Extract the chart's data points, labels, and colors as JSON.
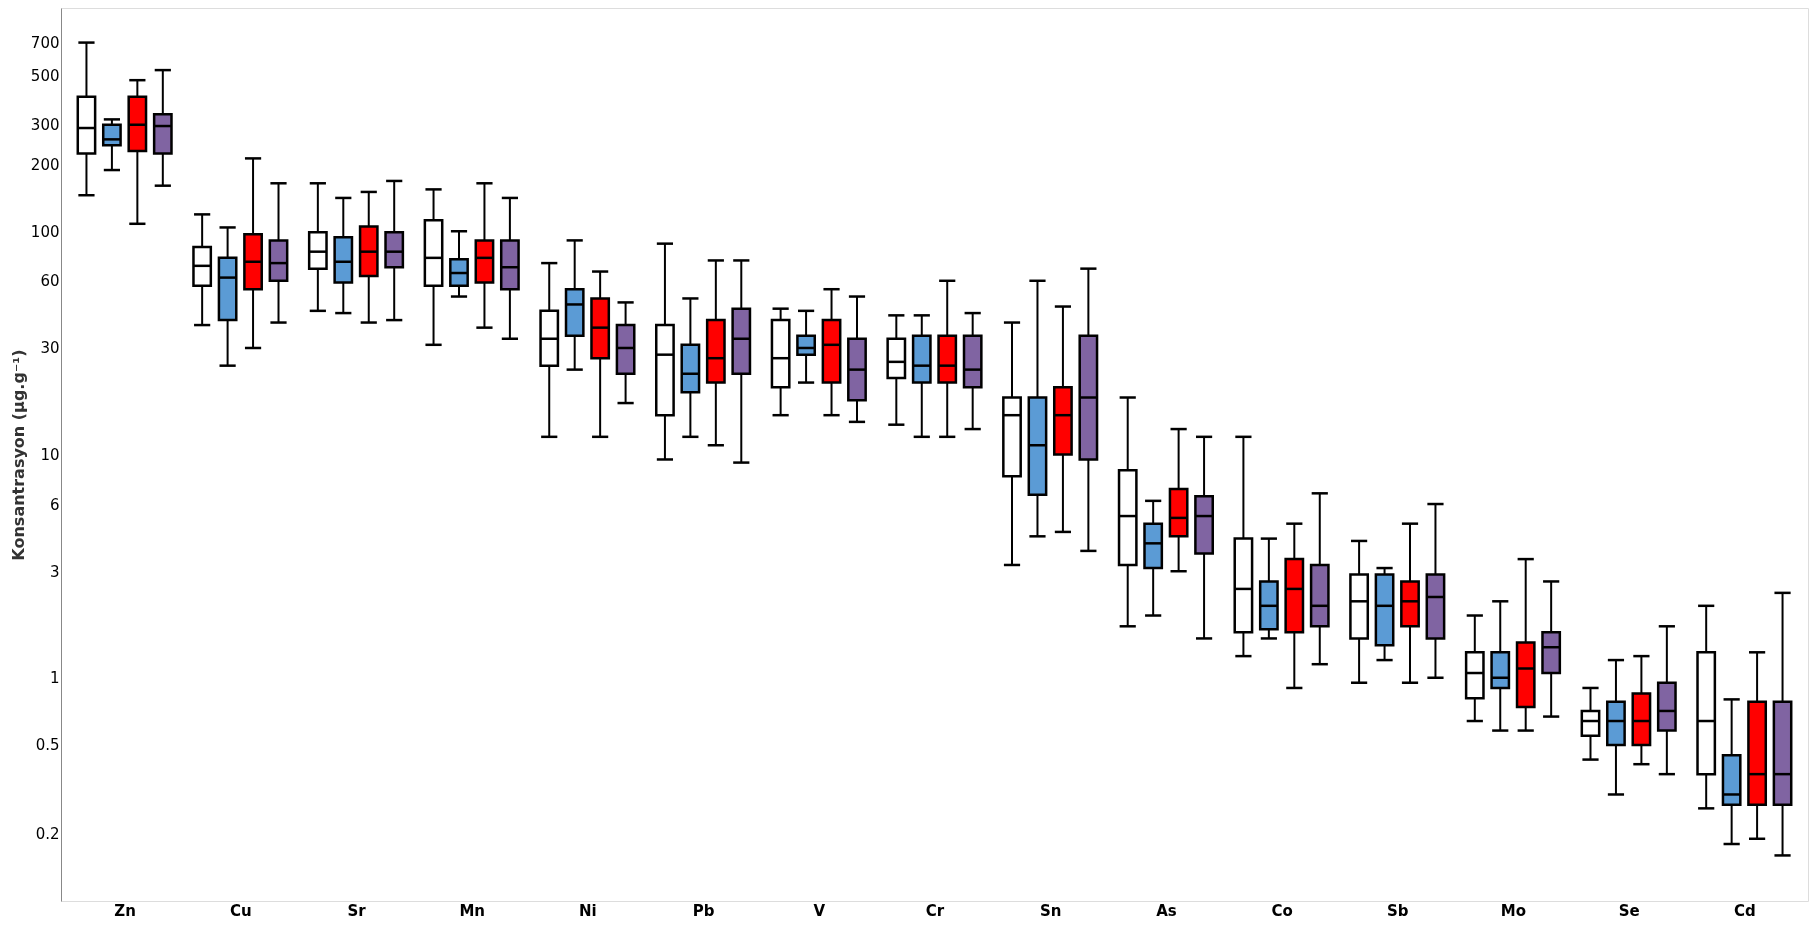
{
  "chart_data": {
    "type": "box",
    "ylabel": "Konsantrasyon  (µg.g⁻¹)",
    "categories": [
      "Zn",
      "Cu",
      "Sr",
      "Mn",
      "Ni",
      "Pb",
      "V",
      "Cr",
      "Sn",
      "As",
      "Co",
      "Sb",
      "Mo",
      "Se",
      "Cd"
    ],
    "log": true,
    "ylim": [
      0.1,
      1000
    ],
    "yticks": [
      0.2,
      0.5,
      1,
      3,
      6,
      10,
      30,
      60,
      100,
      200,
      300,
      500,
      700
    ],
    "grid": false,
    "legend": false,
    "series": [
      {
        "color": "#ffffff",
        "boxes": [
          {
            "low": 145,
            "q1": 223,
            "median": 290,
            "q3": 400,
            "high": 700
          },
          {
            "low": 38,
            "q1": 57,
            "median": 70,
            "q3": 85,
            "high": 119
          },
          {
            "low": 44,
            "q1": 68,
            "median": 81,
            "q3": 99,
            "high": 164
          },
          {
            "low": 31,
            "q1": 57,
            "median": 76,
            "q3": 112,
            "high": 154
          },
          {
            "low": 12,
            "q1": 25,
            "median": 33,
            "q3": 44,
            "high": 72
          },
          {
            "low": 9.5,
            "q1": 15,
            "median": 28,
            "q3": 38,
            "high": 88
          },
          {
            "low": 15,
            "q1": 20,
            "median": 27,
            "q3": 40,
            "high": 45
          },
          {
            "low": 13.6,
            "q1": 22,
            "median": 26,
            "q3": 33,
            "high": 42
          },
          {
            "low": 3.2,
            "q1": 8,
            "median": 15,
            "q3": 18,
            "high": 39
          },
          {
            "low": 1.7,
            "q1": 3.2,
            "median": 5.3,
            "q3": 8.5,
            "high": 18
          },
          {
            "low": 1.25,
            "q1": 1.6,
            "median": 2.5,
            "q3": 4.2,
            "high": 12
          },
          {
            "low": 0.95,
            "q1": 1.5,
            "median": 2.2,
            "q3": 2.9,
            "high": 4.1
          },
          {
            "low": 0.64,
            "q1": 0.81,
            "median": 1.05,
            "q3": 1.3,
            "high": 1.9
          },
          {
            "low": 0.43,
            "q1": 0.55,
            "median": 0.64,
            "q3": 0.71,
            "high": 0.9
          },
          {
            "low": 0.26,
            "q1": 0.37,
            "median": 0.64,
            "q3": 1.3,
            "high": 2.1
          }
        ]
      },
      {
        "color": "#5b9bd5",
        "boxes": [
          {
            "low": 188,
            "q1": 243,
            "median": 258,
            "q3": 300,
            "high": 317
          },
          {
            "low": 25,
            "q1": 40,
            "median": 62,
            "q3": 76,
            "high": 104
          },
          {
            "low": 43,
            "q1": 59,
            "median": 73,
            "q3": 94,
            "high": 141
          },
          {
            "low": 51,
            "q1": 57,
            "median": 65,
            "q3": 75,
            "high": 100
          },
          {
            "low": 24,
            "q1": 34,
            "median": 47,
            "q3": 55,
            "high": 91
          },
          {
            "low": 12,
            "q1": 19,
            "median": 23,
            "q3": 31,
            "high": 50
          },
          {
            "low": 21,
            "q1": 28,
            "median": 30,
            "q3": 34,
            "high": 44
          },
          {
            "low": 12,
            "q1": 21,
            "median": 25,
            "q3": 34,
            "high": 42
          },
          {
            "low": 4.3,
            "q1": 6.6,
            "median": 11,
            "q3": 18,
            "high": 60
          },
          {
            "low": 1.9,
            "q1": 3.1,
            "median": 4,
            "q3": 4.9,
            "high": 6.2
          },
          {
            "low": 1.5,
            "q1": 1.65,
            "median": 2.1,
            "q3": 2.7,
            "high": 4.2
          },
          {
            "low": 1.2,
            "q1": 1.4,
            "median": 2.1,
            "q3": 2.9,
            "high": 3.1
          },
          {
            "low": 0.58,
            "q1": 0.9,
            "median": 1,
            "q3": 1.3,
            "high": 2.2
          },
          {
            "low": 0.3,
            "q1": 0.5,
            "median": 0.64,
            "q3": 0.78,
            "high": 1.2
          },
          {
            "low": 0.18,
            "q1": 0.27,
            "median": 0.3,
            "q3": 0.45,
            "high": 0.8
          }
        ]
      },
      {
        "color": "#ff0000",
        "boxes": [
          {
            "low": 108,
            "q1": 229,
            "median": 300,
            "q3": 400,
            "high": 475
          },
          {
            "low": 30,
            "q1": 55,
            "median": 73,
            "q3": 97,
            "high": 212
          },
          {
            "low": 39,
            "q1": 63,
            "median": 81,
            "q3": 105,
            "high": 150
          },
          {
            "low": 37,
            "q1": 59,
            "median": 76,
            "q3": 91,
            "high": 164
          },
          {
            "low": 12,
            "q1": 27,
            "median": 37,
            "q3": 50,
            "high": 66
          },
          {
            "low": 11,
            "q1": 21,
            "median": 27,
            "q3": 40,
            "high": 74
          },
          {
            "low": 15,
            "q1": 21,
            "median": 31,
            "q3": 40,
            "high": 55
          },
          {
            "low": 12,
            "q1": 21,
            "median": 25,
            "q3": 34,
            "high": 60
          },
          {
            "low": 4.5,
            "q1": 10,
            "median": 15,
            "q3": 20,
            "high": 46
          },
          {
            "low": 3,
            "q1": 4.3,
            "median": 5.2,
            "q3": 7,
            "high": 13
          },
          {
            "low": 0.9,
            "q1": 1.6,
            "median": 2.5,
            "q3": 3.4,
            "high": 4.9
          },
          {
            "low": 0.95,
            "q1": 1.7,
            "median": 2.2,
            "q3": 2.7,
            "high": 4.9
          },
          {
            "low": 0.58,
            "q1": 0.74,
            "median": 1.1,
            "q3": 1.44,
            "high": 3.4
          },
          {
            "low": 0.41,
            "q1": 0.5,
            "median": 0.64,
            "q3": 0.85,
            "high": 1.25
          },
          {
            "low": 0.19,
            "q1": 0.27,
            "median": 0.37,
            "q3": 0.78,
            "high": 1.3
          }
        ]
      },
      {
        "color": "#8064a2",
        "boxes": [
          {
            "low": 160,
            "q1": 223,
            "median": 296,
            "q3": 334,
            "high": 527
          },
          {
            "low": 39,
            "q1": 60,
            "median": 72,
            "q3": 91,
            "high": 164
          },
          {
            "low": 40,
            "q1": 69,
            "median": 81,
            "q3": 99,
            "high": 168
          },
          {
            "low": 33,
            "q1": 55,
            "median": 69,
            "q3": 91,
            "high": 141
          },
          {
            "low": 17,
            "q1": 23,
            "median": 30,
            "q3": 38,
            "high": 48
          },
          {
            "low": 9.2,
            "q1": 23,
            "median": 33,
            "q3": 45,
            "high": 74
          },
          {
            "low": 14,
            "q1": 17.5,
            "median": 24,
            "q3": 33,
            "high": 51
          },
          {
            "low": 13,
            "q1": 20,
            "median": 24,
            "q3": 34,
            "high": 43
          },
          {
            "low": 3.7,
            "q1": 9.5,
            "median": 18,
            "q3": 34,
            "high": 68
          },
          {
            "low": 1.5,
            "q1": 3.6,
            "median": 5.3,
            "q3": 6.5,
            "high": 12
          },
          {
            "low": 1.15,
            "q1": 1.7,
            "median": 2.1,
            "q3": 3.2,
            "high": 6.7
          },
          {
            "low": 1,
            "q1": 1.5,
            "median": 2.3,
            "q3": 2.9,
            "high": 6
          },
          {
            "low": 0.67,
            "q1": 1.05,
            "median": 1.37,
            "q3": 1.6,
            "high": 2.7
          },
          {
            "low": 0.37,
            "q1": 0.58,
            "median": 0.71,
            "q3": 0.95,
            "high": 1.7
          },
          {
            "low": 0.16,
            "q1": 0.27,
            "median": 0.37,
            "q3": 0.78,
            "high": 2.4
          }
        ]
      }
    ]
  }
}
